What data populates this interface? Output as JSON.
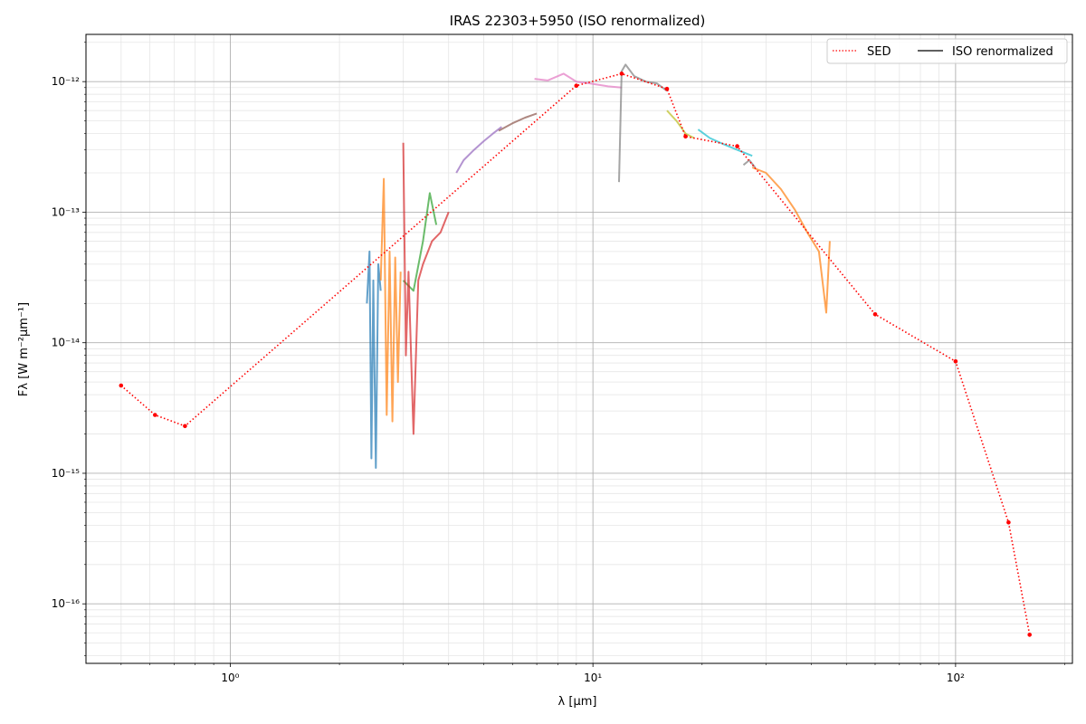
{
  "chart_data": {
    "type": "line",
    "title": "IRAS 22303+5950 (ISO renormalized)",
    "xlabel": "λ [μm]",
    "ylabel": "Fλ [W m⁻²μm⁻¹]",
    "xscale": "log",
    "yscale": "log",
    "xlim": [
      0.4,
      210
    ],
    "ylim": [
      3.5e-17,
      2.3e-12
    ],
    "x_ticks": [
      {
        "value": 1,
        "label": "10⁰"
      },
      {
        "value": 10,
        "label": "10¹"
      },
      {
        "value": 100,
        "label": "10²"
      }
    ],
    "y_ticks": [
      {
        "value": 1e-16,
        "label": "10⁻¹⁶"
      },
      {
        "value": 1e-15,
        "label": "10⁻¹⁵"
      },
      {
        "value": 1e-14,
        "label": "10⁻¹⁴"
      },
      {
        "value": 1e-13,
        "label": "10⁻¹³"
      },
      {
        "value": 1e-12,
        "label": "10⁻¹²"
      }
    ],
    "grid": true,
    "legend": {
      "placement": "top-right",
      "entries": [
        {
          "label": "SED",
          "style": "dotted",
          "color": "#ff0000"
        },
        {
          "label": "ISO renormalized",
          "style": "solid",
          "color": "#000000"
        }
      ]
    },
    "sed": {
      "name": "SED",
      "color": "#ff0000",
      "x": [
        0.5,
        0.62,
        0.75,
        9.0,
        12.0,
        16.0,
        18.0,
        25.0,
        60.0,
        100.0,
        140.0,
        160.0
      ],
      "y": [
        4.7e-15,
        2.8e-15,
        2.3e-15,
        9.3e-13,
        1.15e-12,
        8.8e-13,
        3.8e-13,
        3.2e-13,
        1.65e-14,
        7.2e-15,
        4.2e-16,
        5.8e-17
      ]
    },
    "spectra": [
      {
        "color": "#1f77b4",
        "x": [
          2.38,
          2.42,
          2.45,
          2.48,
          2.52,
          2.56,
          2.6
        ],
        "y": [
          2e-14,
          5e-14,
          1.3e-15,
          3e-14,
          1.1e-15,
          4e-14,
          2.5e-14
        ]
      },
      {
        "color": "#ff7f0e",
        "x": [
          2.6,
          2.65,
          2.7,
          2.75,
          2.8,
          2.85,
          2.9,
          2.95
        ],
        "y": [
          3e-14,
          1.8e-13,
          2.8e-15,
          5e-14,
          2.5e-15,
          4.5e-14,
          5e-15,
          3.5e-14
        ]
      },
      {
        "color": "#2ca02c",
        "x": [
          3.0,
          3.2,
          3.4,
          3.55,
          3.7
        ],
        "y": [
          3e-14,
          2.5e-14,
          6e-14,
          1.4e-13,
          8e-14
        ]
      },
      {
        "color": "#d62728",
        "x": [
          3.0,
          3.05,
          3.1,
          3.2,
          3.3,
          3.4,
          3.6,
          3.8,
          4.0
        ],
        "y": [
          3.4e-13,
          8e-15,
          3.5e-14,
          2e-15,
          3e-14,
          4e-14,
          6e-14,
          7e-14,
          1e-13
        ]
      },
      {
        "color": "#9467bd",
        "x": [
          4.2,
          4.4,
          4.7,
          5.0,
          5.3,
          5.6
        ],
        "y": [
          2e-13,
          2.5e-13,
          3e-13,
          3.5e-13,
          4e-13,
          4.5e-13
        ]
      },
      {
        "color": "#8c564b",
        "x": [
          5.5,
          6.0,
          6.5,
          7.0
        ],
        "y": [
          4.2e-13,
          4.8e-13,
          5.3e-13,
          5.7e-13
        ]
      },
      {
        "color": "#e377c2",
        "x": [
          6.9,
          7.5,
          8.3,
          9.0,
          9.8,
          11.0,
          12.0
        ],
        "y": [
          1.05e-12,
          1.02e-12,
          1.15e-12,
          1e-12,
          9.7e-13,
          9.2e-13,
          9e-13
        ]
      },
      {
        "color": "#7f7f7f",
        "x": [
          11.8,
          12.0,
          12.3,
          13.0,
          14.0,
          15.0,
          16.0
        ],
        "y": [
          1.7e-13,
          1.2e-12,
          1.35e-12,
          1.1e-12,
          1e-12,
          9.7e-13,
          8.5e-13
        ]
      },
      {
        "color": "#bcbd22",
        "x": [
          16.0,
          17.0,
          18.0,
          19.0
        ],
        "y": [
          6e-13,
          5e-13,
          4e-13,
          3.7e-13
        ]
      },
      {
        "color": "#17becf",
        "x": [
          19.5,
          21.0,
          23.0,
          25.0,
          27.5
        ],
        "y": [
          4.3e-13,
          3.7e-13,
          3.3e-13,
          3e-13,
          2.7e-13
        ]
      },
      {
        "color": "#7f7f7f",
        "x": [
          26.0,
          27.0,
          28.0
        ],
        "y": [
          2.3e-13,
          2.5e-13,
          2.2e-13
        ]
      },
      {
        "color": "#ff7f0e",
        "x": [
          27.5,
          30.0,
          33.0,
          36.0,
          39.0,
          42.0,
          44.0,
          45.0
        ],
        "y": [
          2.2e-13,
          2e-13,
          1.5e-13,
          1.05e-13,
          7e-14,
          5e-14,
          1.7e-14,
          6e-14
        ]
      }
    ]
  }
}
